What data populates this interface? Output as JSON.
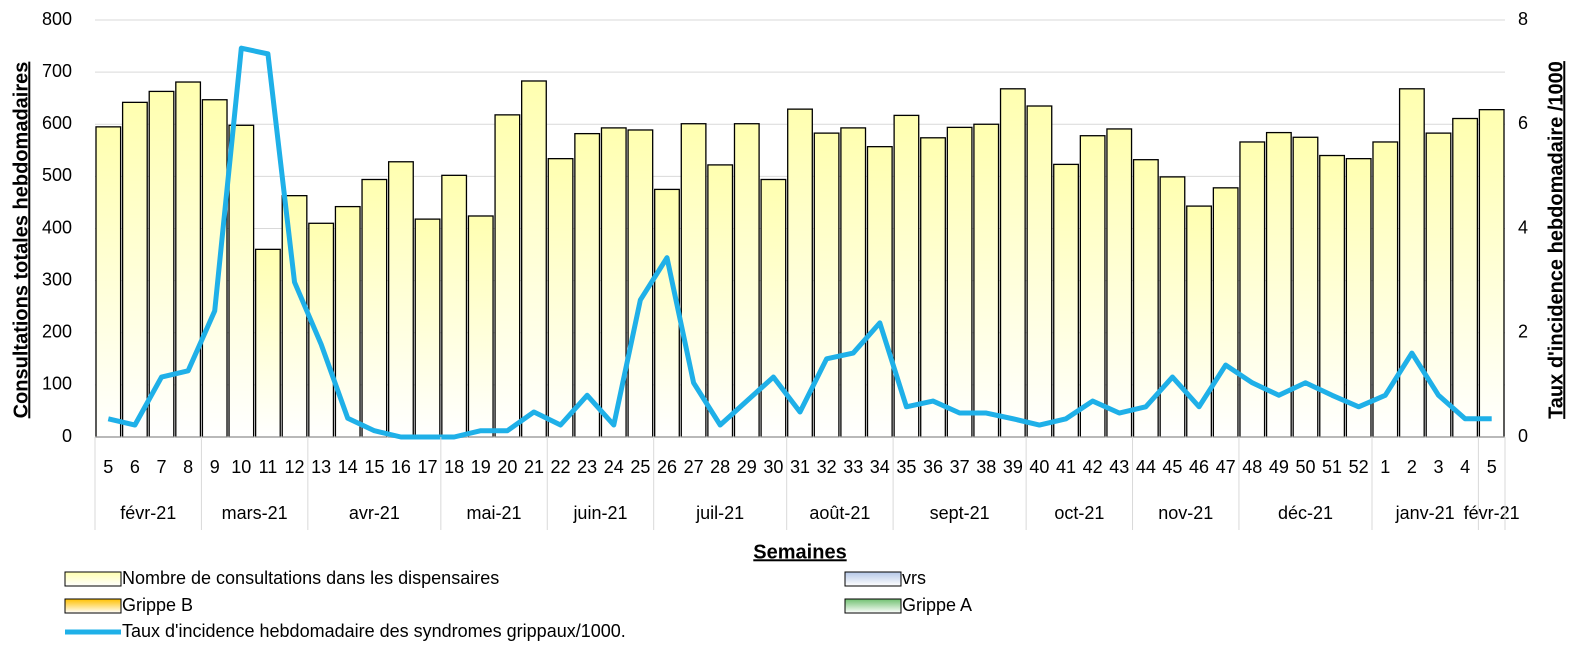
{
  "chart_data": {
    "type": "bar_line",
    "xlabel": "Semaines",
    "ylabel": "Consultations totales hebdomadaires",
    "y2label": "Taux d'incidence hebdomadaire /1000",
    "categories": [
      "5",
      "6",
      "7",
      "8",
      "9",
      "10",
      "11",
      "12",
      "13",
      "14",
      "15",
      "16",
      "17",
      "18",
      "19",
      "20",
      "21",
      "22",
      "23",
      "24",
      "25",
      "26",
      "27",
      "28",
      "29",
      "30",
      "31",
      "32",
      "33",
      "34",
      "35",
      "36",
      "37",
      "38",
      "39",
      "40",
      "41",
      "42",
      "43",
      "44",
      "45",
      "46",
      "47",
      "48",
      "49",
      "50",
      "51",
      "52",
      "1",
      "2",
      "3",
      "4",
      "5"
    ],
    "months": [
      "févr-21",
      "févr-21",
      "févr-21",
      "févr-21",
      "mars-21",
      "mars-21",
      "mars-21",
      "mars-21",
      "avr-21",
      "avr-21",
      "avr-21",
      "avr-21",
      "avr-21",
      "mai-21",
      "mai-21",
      "mai-21",
      "mai-21",
      "juin-21",
      "juin-21",
      "juin-21",
      "juin-21",
      "juil-21",
      "juil-21",
      "juil-21",
      "juil-21",
      "juil-21",
      "août-21",
      "août-21",
      "août-21",
      "août-21",
      "sept-21",
      "sept-21",
      "sept-21",
      "sept-21",
      "sept-21",
      "oct-21",
      "oct-21",
      "oct-21",
      "oct-21",
      "nov-21",
      "nov-21",
      "nov-21",
      "nov-21",
      "déc-21",
      "déc-21",
      "déc-21",
      "déc-21",
      "déc-21",
      "janv-21",
      "janv-21",
      "janv-21",
      "janv-21",
      "févr-21"
    ],
    "ylim": [
      0,
      800
    ],
    "yticks": [
      0,
      100,
      200,
      300,
      400,
      500,
      600,
      700,
      800
    ],
    "y2lim": [
      0,
      8
    ],
    "y2ticks": [
      0,
      2,
      4,
      6,
      8
    ],
    "grid": true,
    "series": [
      {
        "name": "Nombre de consultations dans les dispensaires",
        "kind": "bar",
        "color": "#ffffb0",
        "values": [
          595,
          642,
          663,
          681,
          647,
          598,
          360,
          463,
          410,
          442,
          494,
          528,
          418,
          502,
          424,
          618,
          683,
          534,
          582,
          593,
          589,
          475,
          601,
          522,
          601,
          494,
          629,
          583,
          593,
          557,
          617,
          574,
          594,
          600,
          668,
          635,
          523,
          578,
          591,
          532,
          499,
          443,
          478,
          566,
          584,
          575,
          540,
          534,
          566,
          668,
          583,
          611,
          628
        ]
      },
      {
        "name": "Grippe B",
        "kind": "bar",
        "color": "#ffc000",
        "values": [
          null,
          null,
          null,
          null,
          null,
          null,
          null,
          null,
          null,
          null,
          null,
          null,
          null,
          null,
          null,
          null,
          null,
          null,
          null,
          null,
          null,
          null,
          null,
          null,
          null,
          null,
          null,
          null,
          null,
          null,
          null,
          null,
          null,
          null,
          null,
          null,
          null,
          null,
          null,
          null,
          null,
          null,
          null,
          null,
          null,
          null,
          null,
          null,
          null,
          null,
          null,
          null,
          null
        ]
      },
      {
        "name": "vrs",
        "kind": "bar",
        "color": "#b4c7e7",
        "values": [
          null,
          null,
          null,
          null,
          null,
          null,
          null,
          null,
          null,
          null,
          null,
          null,
          null,
          null,
          null,
          null,
          null,
          null,
          null,
          null,
          null,
          null,
          null,
          null,
          null,
          null,
          null,
          null,
          null,
          null,
          null,
          null,
          null,
          null,
          null,
          null,
          null,
          null,
          null,
          null,
          null,
          null,
          null,
          null,
          null,
          null,
          null,
          null,
          null,
          null,
          null,
          null,
          null
        ]
      },
      {
        "name": "Grippe A",
        "kind": "bar",
        "color": "#70c070",
        "values": [
          null,
          null,
          null,
          null,
          null,
          null,
          null,
          null,
          null,
          null,
          null,
          null,
          null,
          null,
          null,
          null,
          null,
          null,
          null,
          null,
          null,
          null,
          null,
          null,
          null,
          null,
          null,
          null,
          null,
          null,
          null,
          null,
          null,
          null,
          null,
          null,
          null,
          null,
          null,
          null,
          null,
          null,
          null,
          null,
          null,
          null,
          null,
          null,
          null,
          null,
          null,
          null,
          null
        ]
      },
      {
        "name": "Taux d'incidence hebdomadaire des syndromes grippaux/1000.",
        "kind": "line",
        "axis": "y2",
        "color": "#1fb0e8",
        "values": [
          0.35,
          0.23,
          1.15,
          1.27,
          2.42,
          7.46,
          7.35,
          2.97,
          1.78,
          0.36,
          0.12,
          0,
          0,
          0,
          0.12,
          0.12,
          0.48,
          0.23,
          0.8,
          0.23,
          2.63,
          3.44,
          1.04,
          0.23,
          0.69,
          1.15,
          0.48,
          1.5,
          1.61,
          2.19,
          0.58,
          0.69,
          0.46,
          0.46,
          0.35,
          0.23,
          0.35,
          0.69,
          0.46,
          0.58,
          1.15,
          0.58,
          1.38,
          1.04,
          0.8,
          1.04,
          0.8,
          0.58,
          0.8,
          1.61,
          0.8,
          0.35,
          0.35
        ]
      }
    ]
  }
}
